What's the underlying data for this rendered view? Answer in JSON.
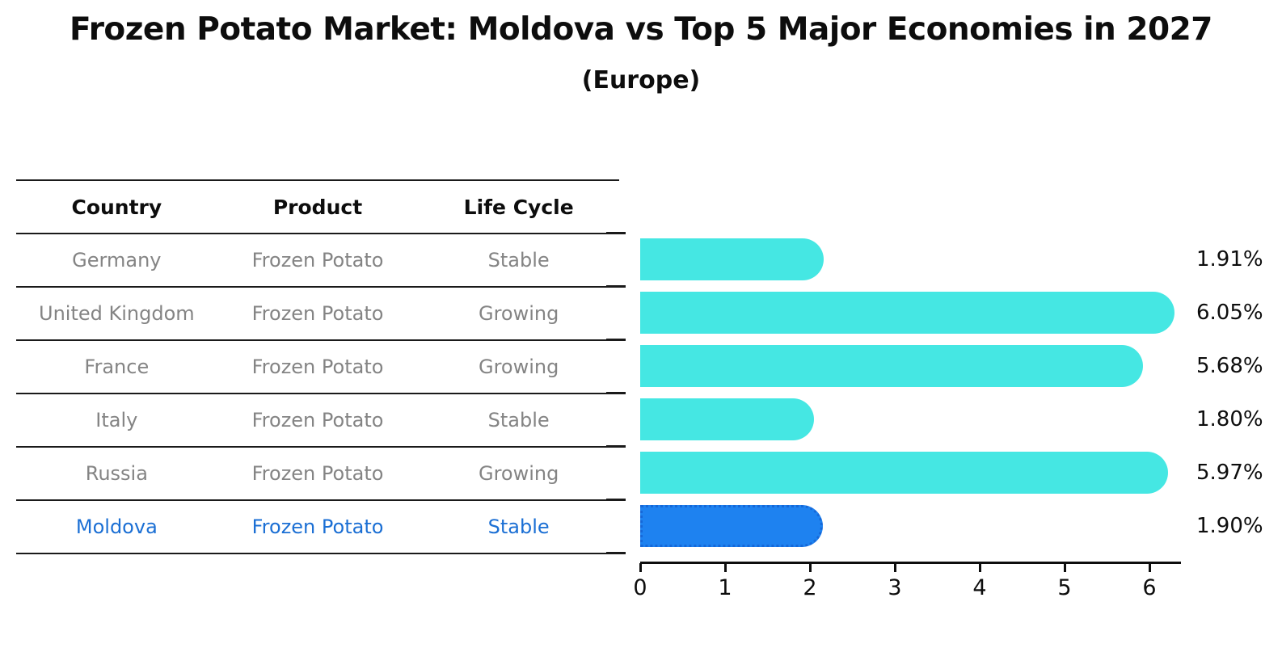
{
  "title": "Frozen Potato Market: Moldova vs Top 5 Major Economies in 2027",
  "subtitle": "(Europe)",
  "table": {
    "headers": [
      "Country",
      "Product",
      "Life Cycle"
    ],
    "rows": [
      {
        "country": "Germany",
        "product": "Frozen Potato",
        "life_cycle": "Stable"
      },
      {
        "country": "United Kingdom",
        "product": "Frozen Potato",
        "life_cycle": "Growing"
      },
      {
        "country": "France",
        "product": "Frozen Potato",
        "life_cycle": "Growing"
      },
      {
        "country": "Italy",
        "product": "Frozen Potato",
        "life_cycle": "Stable"
      },
      {
        "country": "Russia",
        "product": "Frozen Potato",
        "life_cycle": "Growing"
      },
      {
        "country": "Moldova",
        "product": "Frozen Potato",
        "life_cycle": "Stable"
      }
    ]
  },
  "colors": {
    "bar": "#45e7e3",
    "highlight_bar": "#1e82f0",
    "highlight_bar_border": "#1668d8",
    "highlight_text": "#1b6fd4",
    "table_text": "#848484",
    "axis_text": "#0d0d0d"
  },
  "chart_data": {
    "type": "bar",
    "orientation": "horizontal",
    "categories": [
      "Germany",
      "United Kingdom",
      "France",
      "Italy",
      "Russia",
      "Moldova"
    ],
    "values": [
      1.91,
      6.05,
      5.68,
      1.8,
      5.97,
      1.9
    ],
    "value_labels": [
      "1.91%",
      "6.05%",
      "5.68%",
      "1.80%",
      "5.97%",
      "1.90%"
    ],
    "x_ticks": [
      0,
      1,
      2,
      3,
      4,
      5,
      6
    ],
    "xlim": [
      0,
      6.37
    ],
    "highlight_index": 5,
    "legend": "none",
    "grid": false,
    "title": "Frozen Potato Market: Moldova vs Top 5 Major Economies in 2027 (Europe)"
  }
}
